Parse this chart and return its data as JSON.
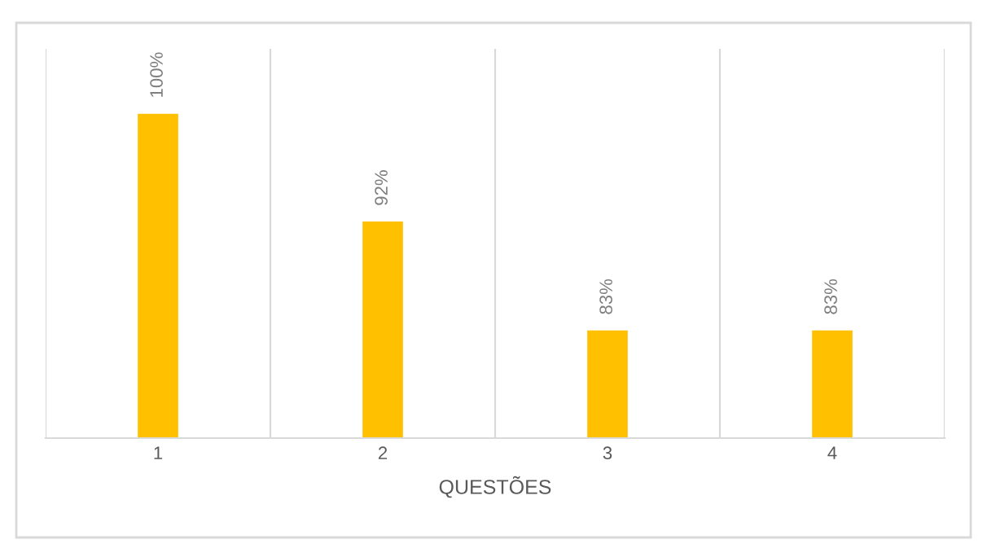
{
  "chart_data": {
    "type": "bar",
    "xlabel": "QUESTÕES",
    "categories": [
      "1",
      "2",
      "3",
      "4"
    ],
    "values": [
      100,
      91.7,
      83.3,
      83.3
    ],
    "value_labels": [
      "100%",
      "92%",
      "83%",
      "83%"
    ],
    "color": "#ffc000",
    "ylim": [
      75,
      105
    ],
    "tick_labels": "x",
    "grid": "x",
    "legend": false
  }
}
